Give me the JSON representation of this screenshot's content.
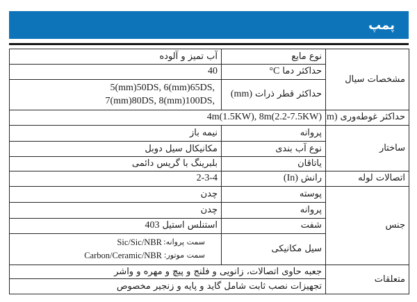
{
  "header": {
    "title": "پمپ",
    "accent_color": "#0e74ba",
    "rule_color": "#151515"
  },
  "table": {
    "fluid": {
      "category": "مشخصات سیال",
      "rows": [
        {
          "param_fa": "نوع مایع",
          "value_fa": "آب تمیز و آلوده"
        },
        {
          "param_fa": "حداکثر دما",
          "param_en": "°C",
          "value_en": "40"
        },
        {
          "param_fa": "حداکثر قطر ذرات",
          "param_en": "(mm)",
          "value_line1": "5(mm)50DS, 6(mm)65DS,",
          "value_line2": "7(mm)80DS, 8(mm)100DS,"
        }
      ]
    },
    "submersion": {
      "category_fa": "حداکثر غوطه‌وری",
      "category_en": "(m)",
      "value_en": "4m(1.5KW), 8m(2.2-7.5KW)"
    },
    "structure": {
      "category": "ساختار",
      "rows": [
        {
          "param_fa": "پروانه",
          "value_fa": "نیمه باز"
        },
        {
          "param_fa": "نوع آب بندی",
          "value_fa": "مکانیکال سیل دوبل"
        },
        {
          "param_fa": "یاتاقان",
          "value_fa": "بلبرینگ با گریس دائمی"
        }
      ]
    },
    "pipe": {
      "category": "اتصالات لوله",
      "param_fa": "رانش",
      "param_en": "(In)",
      "value_en": "2-3-4"
    },
    "material": {
      "category": "جنس",
      "rows": [
        {
          "param_fa": "پوسته",
          "value_fa": "چدن"
        },
        {
          "param_fa": "پروانه",
          "value_fa": "چدن"
        },
        {
          "param_fa": "شفت",
          "value_fa": "استنلس استیل",
          "value_en": "403"
        },
        {
          "param_fa": "سیل مکانیکی"
        }
      ],
      "seal": {
        "impeller_label": "سمت پروانه:",
        "impeller_value": "Sic/Sic/NBR",
        "motor_label": "سمت موتور:",
        "motor_value": "Carbon/Ceramic/NBR"
      }
    },
    "accessories": {
      "category": "متعلقات",
      "rows": [
        "جعبه حاوی اتصالات، زانویی و فلنج و پیچ و مهره و واشر",
        "تجهیزات نصب ثابت شامل گاید و پایه و زنجیر مخصوص"
      ]
    }
  }
}
